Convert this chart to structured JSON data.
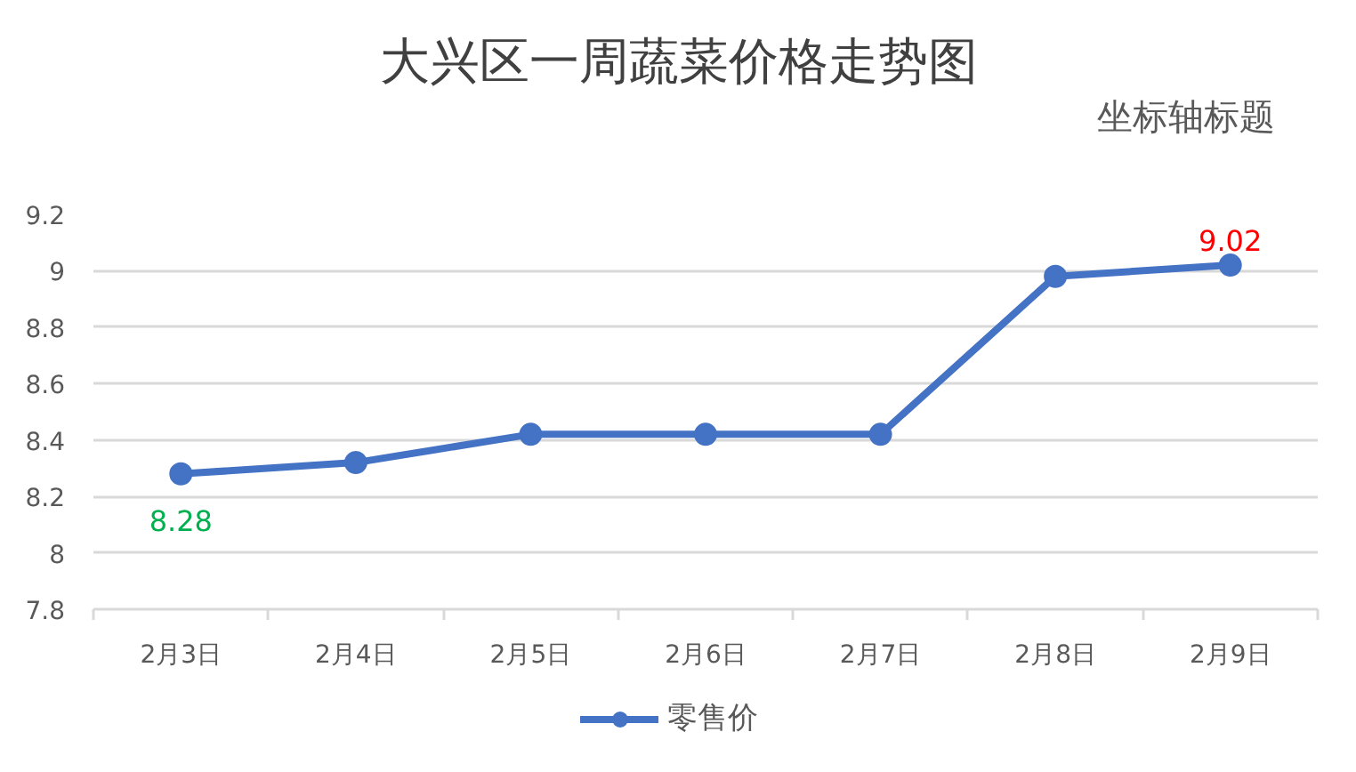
{
  "chart_data": {
    "type": "line",
    "title": "大兴区一周蔬菜价格走势图",
    "ylabel": "坐标轴标题",
    "categories": [
      "2月3日",
      "2月4日",
      "2月5日",
      "2月6日",
      "2月7日",
      "2月8日",
      "2月9日"
    ],
    "series": [
      {
        "name": "零售价",
        "color": "#4472c4",
        "values": [
          8.28,
          8.32,
          8.42,
          8.42,
          8.42,
          8.98,
          9.02
        ],
        "value_labels": [
          "8.28",
          null,
          null,
          null,
          null,
          null,
          "9.02"
        ]
      }
    ],
    "ylim": [
      7.8,
      9.2
    ],
    "yticks": [
      7.8,
      8,
      8.2,
      8.4,
      8.6,
      8.8,
      9,
      9.2
    ],
    "grid": "y",
    "legend": "bottom",
    "marker": "circle",
    "line_style": "solid"
  }
}
